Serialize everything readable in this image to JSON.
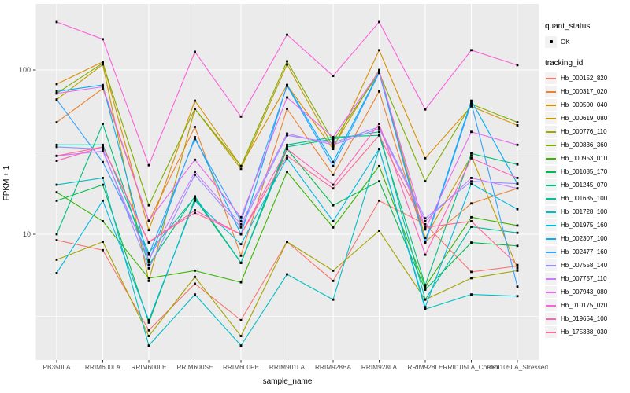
{
  "figure": {
    "x_axis": {
      "title": "sample_name"
    },
    "y_axis": {
      "title": "FPKM + 1",
      "tick_labels": [
        "100",
        "10"
      ]
    },
    "legend": {
      "quant_status_title": "quant_status",
      "quant_status_items": [
        {
          "label": "OK"
        }
      ],
      "tracking_title": "tracking_id"
    }
  },
  "colors": {
    "panel_bg": "#EBEBEB",
    "grid": "#FFFFFF",
    "tick_text": "#4D4D4D",
    "axis_tick": "#333333",
    "legend_key_bg": "#F2F2F2",
    "point": "#000000"
  },
  "chart_data": {
    "type": "line",
    "title": "",
    "xlabel": "sample_name",
    "ylabel": "FPKM + 1",
    "y_scale": "log10",
    "ylim": [
      1.7,
      250
    ],
    "y_major_ticks": [
      100,
      10
    ],
    "y_minor_ticks": [
      31.6,
      3.16
    ],
    "grid": true,
    "legend_position": "right",
    "point_shape": "small-black-square",
    "quant_status": "OK",
    "categories": [
      "PB350LA",
      "RRIM600LA",
      "RRIM600LE",
      "RRIM600SE",
      "RRIM600PE",
      "RRIM901LA",
      "RRIM928BA",
      "RRIM928LA",
      "RRIM928LE",
      "RRII105LA_Control",
      "RRII105LA_Stressed"
    ],
    "series": [
      {
        "name": "Hb_000152_820",
        "color": "#F8766D",
        "values": [
          9.2,
          8.0,
          2.6,
          5.0,
          3.0,
          9.0,
          5.2,
          16,
          11.5,
          5.9,
          6.4
        ]
      },
      {
        "name": "Hb_000317_020",
        "color": "#EA8331",
        "values": [
          48,
          77,
          12,
          45,
          7.4,
          58,
          23,
          74,
          9.0,
          15.4,
          19
        ]
      },
      {
        "name": "Hb_000500_040",
        "color": "#D89000",
        "values": [
          82,
          112,
          10.6,
          65,
          26,
          81,
          33,
          132,
          29,
          60,
          46
        ]
      },
      {
        "name": "Hb_000619_080",
        "color": "#C09B00",
        "values": [
          66,
          108,
          5.2,
          58,
          25,
          108,
          34,
          100,
          9.5,
          30,
          6.2
        ]
      },
      {
        "name": "Hb_000776_110",
        "color": "#A3A500",
        "values": [
          7.0,
          9.0,
          2.4,
          5.5,
          2.4,
          9.0,
          6.0,
          10.5,
          4.0,
          5.4,
          6.0
        ]
      },
      {
        "name": "Hb_000836_360",
        "color": "#7CAE00",
        "values": [
          72,
          110,
          15,
          58,
          26,
          113,
          37,
          96,
          21,
          62,
          48
        ]
      },
      {
        "name": "Hb_000953_010",
        "color": "#39B600",
        "values": [
          18,
          12,
          5.4,
          6.0,
          5.1,
          24,
          11,
          26,
          4.8,
          12.7,
          11.3
        ]
      },
      {
        "name": "Hb_001085_170",
        "color": "#00BB4E",
        "values": [
          16,
          20,
          2.9,
          16.5,
          6.7,
          33,
          15,
          21,
          4.6,
          8.9,
          8.5
        ]
      },
      {
        "name": "Hb_001245_070",
        "color": "#00BF7D",
        "values": [
          10,
          47,
          6.5,
          17,
          6.7,
          35,
          39,
          40,
          4.9,
          31,
          26.6
        ]
      },
      {
        "name": "Hb_001635_100",
        "color": "#00C1A3",
        "values": [
          35,
          35,
          7.7,
          16.8,
          6.7,
          34,
          38,
          42,
          4.0,
          11.1,
          10.2
        ]
      },
      {
        "name": "Hb_001728_100",
        "color": "#00BFC4",
        "values": [
          20,
          22,
          2.1,
          4.3,
          2.1,
          5.7,
          4.0,
          33,
          3.5,
          4.3,
          4.2
        ]
      },
      {
        "name": "Hb_001975_160",
        "color": "#00BAE0",
        "values": [
          5.8,
          16,
          3.0,
          16,
          8.7,
          29,
          12,
          33,
          3.6,
          20.3,
          14.2
        ]
      },
      {
        "name": "Hb_002307_100",
        "color": "#00B0F6",
        "values": [
          74,
          81,
          6.8,
          39,
          10,
          81,
          27.5,
          97,
          9.0,
          65,
          20.3
        ]
      },
      {
        "name": "Hb_002477_160",
        "color": "#35A2FF",
        "values": [
          66,
          27.5,
          7.5,
          38,
          12,
          80,
          26,
          96,
          8.8,
          63,
          4.8
        ]
      },
      {
        "name": "Hb_007558_140",
        "color": "#9590FF",
        "values": [
          34,
          33,
          6.2,
          23,
          11,
          40,
          36,
          45,
          12.5,
          21,
          20.3
        ]
      },
      {
        "name": "Hb_007757_110",
        "color": "#C77CFF",
        "values": [
          30,
          32,
          7.0,
          24,
          11.5,
          41,
          35,
          44,
          12.0,
          22,
          19
        ]
      },
      {
        "name": "Hb_007943_080",
        "color": "#E76BF3",
        "values": [
          72,
          79,
          12.1,
          28.4,
          12.7,
          68,
          39,
          98,
          10.7,
          42,
          35
        ]
      },
      {
        "name": "Hb_010175_020",
        "color": "#FA62DB",
        "values": [
          196,
          154,
          26.3,
          129,
          52,
          164,
          92,
          196,
          57.5,
          132,
          107
        ]
      },
      {
        "name": "Hb_019654_100",
        "color": "#FF62BC",
        "values": [
          28,
          34,
          8.9,
          14,
          10,
          33,
          20,
          47,
          7.5,
          29,
          22
        ]
      },
      {
        "name": "Hb_175338_030",
        "color": "#FF6A98",
        "values": [
          30,
          34,
          9.0,
          13.5,
          10,
          30,
          19,
          40,
          11,
          12,
          6.5
        ]
      }
    ]
  }
}
